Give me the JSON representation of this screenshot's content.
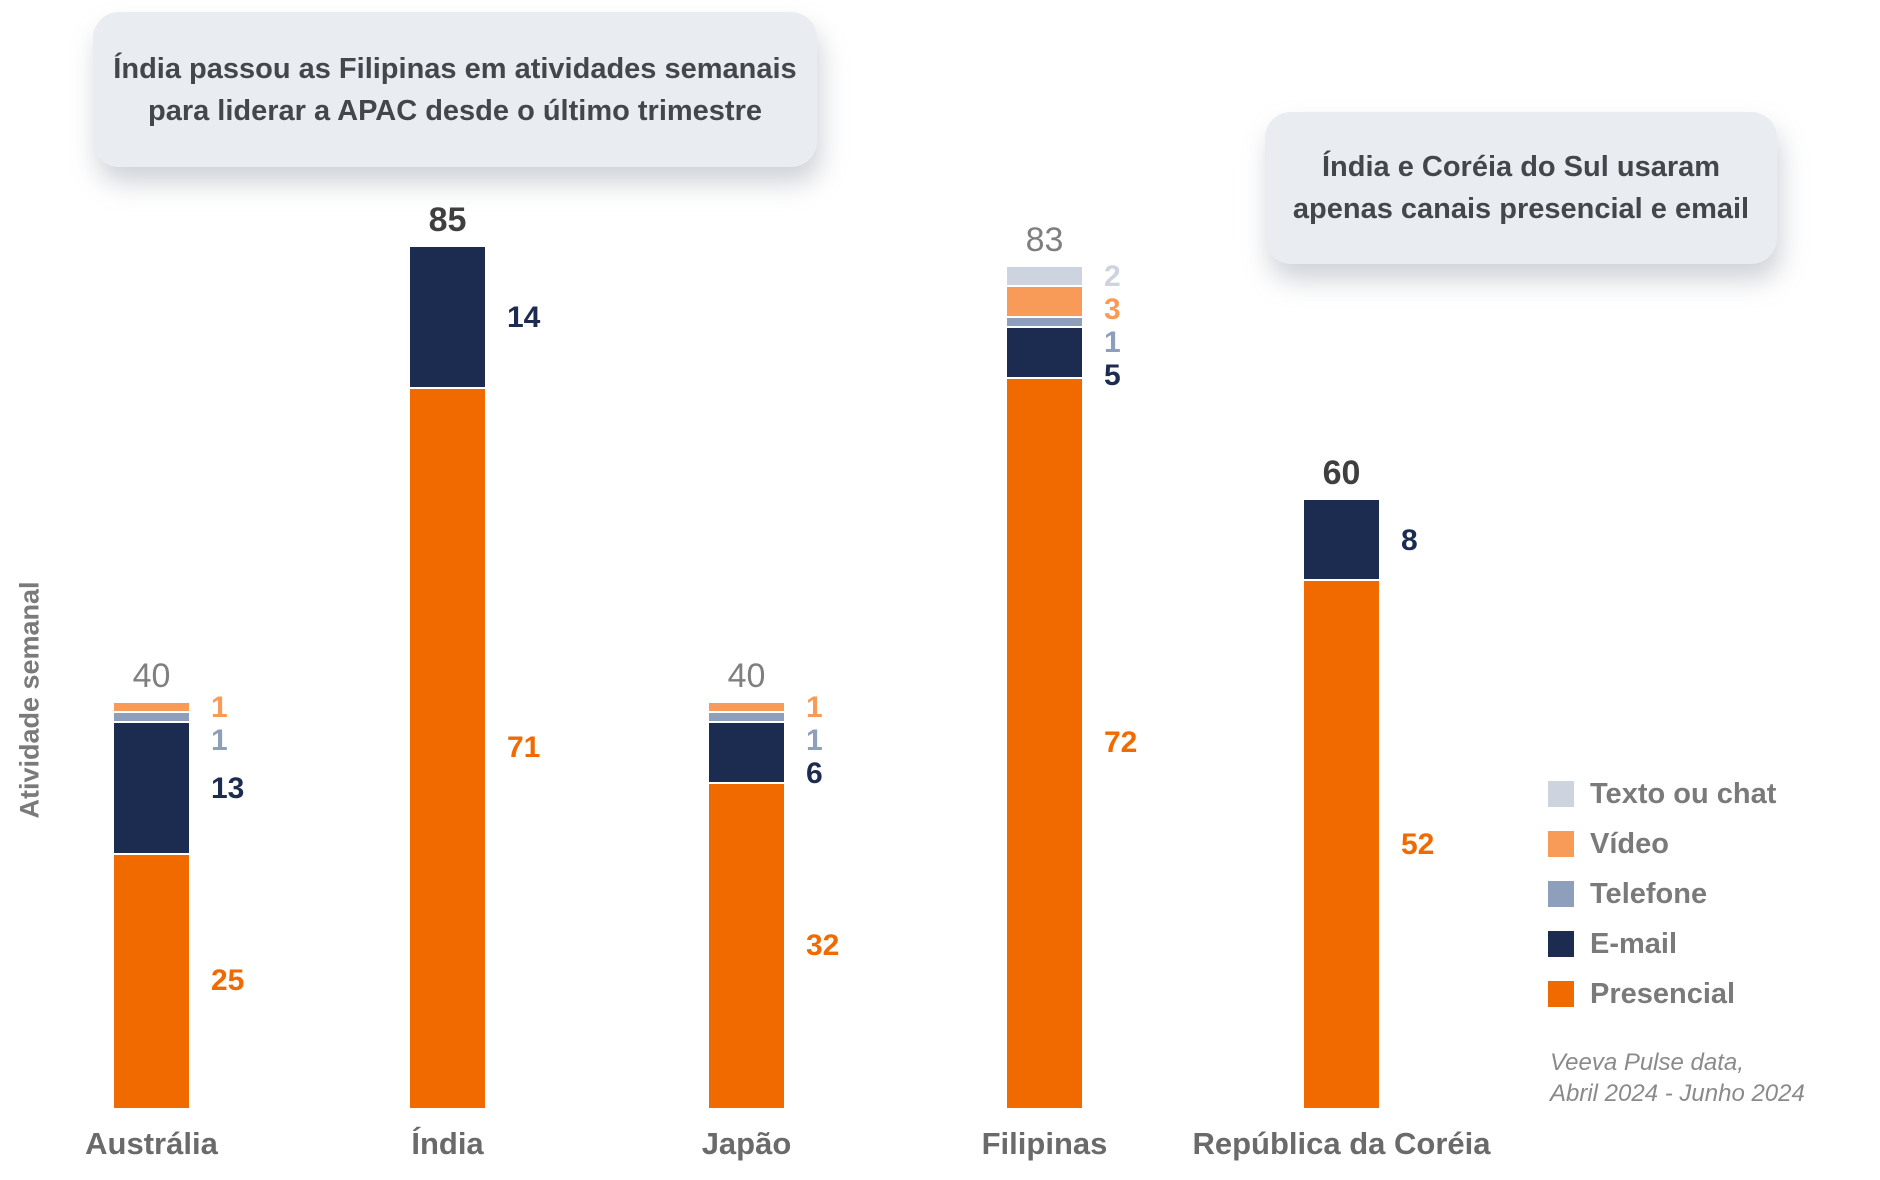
{
  "chart_data": {
    "type": "bar",
    "stacked": true,
    "categories": [
      "Austrália",
      "Índia",
      "Japão",
      "Filipinas",
      "República da Coréia"
    ],
    "series": [
      {
        "name": "Texto ou chat",
        "color": "#CDD4DF",
        "values": [
          0,
          0,
          0,
          2,
          0
        ]
      },
      {
        "name": "Vídeo",
        "color": "#F89B58",
        "values": [
          1,
          0,
          1,
          3,
          0
        ]
      },
      {
        "name": "Telefone",
        "color": "#8E9FBB",
        "values": [
          1,
          0,
          1,
          1,
          0
        ]
      },
      {
        "name": "E-mail",
        "color": "#1C2C50",
        "values": [
          13,
          14,
          6,
          5,
          8
        ]
      },
      {
        "name": "Presencial",
        "color": "#F06A00",
        "values": [
          25,
          71,
          32,
          72,
          52
        ]
      }
    ],
    "totals": [
      40,
      85,
      40,
      83,
      60
    ],
    "totals_emphasized": [
      false,
      true,
      false,
      false,
      true
    ],
    "ylabel": "Atividade semanal",
    "ylim": [
      0,
      90
    ],
    "grid": false,
    "axes_visible": false,
    "legend_position": "right-bottom",
    "annotations": [
      {
        "lines": [
          "Índia passou as Filipinas em atividades semanais",
          "para liderar a APAC desde o último trimestre"
        ]
      },
      {
        "lines": [
          "Índia e Coréia do Sul usaram",
          "apenas canais presencial e email"
        ]
      }
    ],
    "source": [
      "Veeva Pulse data,",
      "Abril 2024 - Junho 2024"
    ]
  },
  "colors": {
    "total_label_gray": "#7F7F7F",
    "total_label_emphasis": "#3F3F3F",
    "category_label": "#6A6A6A",
    "legend_text": "#7A7A7A",
    "callout_background": "#E9EDF2",
    "callout_text": "#43474C",
    "source_text": "#8A8A8A",
    "axis_label": "#7A7A7A"
  }
}
